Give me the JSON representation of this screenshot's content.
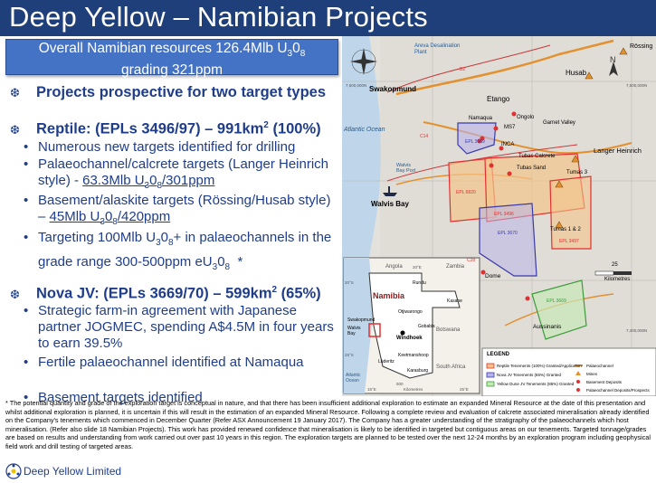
{
  "title": "Deep Yellow – Namibian Projects",
  "resource_box": {
    "line1_pre": "Overall Namibian resources 126.4Mlb U",
    "line1_sub1": "3",
    "line1_mid": "0",
    "line1_sub2": "8",
    "line2": "grading 321ppm"
  },
  "heading1": "Projects prospective for two target types",
  "reptile": {
    "heading_pre": "Reptile: (EPLs 3496/97) – 991km",
    "heading_sup": "2",
    "heading_post": " (100%)",
    "b1": "Numerous new targets identified for drilling",
    "b2_pre": "Palaeochannel/calcrete targets (Langer Heinrich style) - ",
    "b2_link_a": "63.3Mlb U",
    "b2_link_sub1": "3",
    "b2_link_b": "0",
    "b2_link_sub2": "8",
    "b2_link_c": "/301ppm",
    "b3_pre": "Basement/alaskite targets (Rössing/Husab style) – ",
    "b3_link_a": "45Mlb U",
    "b3_link_sub1": "3",
    "b3_link_b": "0",
    "b3_link_sub2": "8",
    "b3_link_c": "/420ppm",
    "b4_a": "Targeting 100Mlb U",
    "b4_sub1": "3",
    "b4_b": "0",
    "b4_sub2": "8",
    "b4_c": "+ in palaeochannels in the grade range 300-500ppm eU",
    "b4_sub3": "3",
    "b4_d": "0",
    "b4_sub4": "8",
    "b4_star": "*"
  },
  "nova": {
    "heading_pre": "Nova JV: (EPLs 3669/70) – 599km",
    "heading_sup": "2",
    "heading_post": " (65%)",
    "b1": "Strategic farm-in agreement with Japanese partner JOGMEC, spending A$4.5M in four years to earn 39.5%",
    "b2": "Fertile palaeochannel identified at Namaqua",
    "b3": "Basement targets identified"
  },
  "footnote": "* The potential quantity and grade of the exploration target is conceptual in nature, and that there has been insufficient additional exploration to estimate an expanded Mineral Resource at the date of this presentation and whilst additional exploration is planned, it is uncertain if this will result in the estimation of an expanded Mineral Resource. Following a complete review and evaluation of calcrete associated mineralisation already identified on the Company's tenements which commenced in December Quarter (Refer ASX Announcement 19 January 2017). The Company has a greater understanding of the stratigraphy of the palaeochannels which host mineralisation. (Refer also slide 18 Namibian Projects). This work has provided renewed confidence that mineralisation is likely to be identified in targeted but contiguous areas on our tenements. Targeted tonnage/grades are based on results and understanding from work carried out over past 10 years in this region. The exploration targets are planned to be tested over the next 12-24 months by an exploration program including geophysical field work and drill testing of targeted areas.",
  "logo_text": "Deep Yellow Limited",
  "map": {
    "areva": "Areva Desalination Plant",
    "rossing": "Rössing",
    "husab": "Husab",
    "swakopmund": "Swakopmund",
    "etango": "Etango",
    "namaqua": "Namaqua",
    "ongolo": "Ongolo",
    "garnet": "Garnet Valley",
    "ms7": "MS7",
    "inca": "INCA",
    "tubas_calcrete": "Tubas Calcrete",
    "tubas_sand": "Tubas Sand",
    "langer": "Langer Heinrich",
    "tumas3": "Tumas 3",
    "tumas12": "Tumas 1 & 2",
    "atlantic": "Atlantic Ocean",
    "walvis_port": "Walvis Bay Port",
    "walvis_bay": "Walvis Bay",
    "epl3669": "EPL 3669",
    "epl6820": "EPL 6820",
    "epl3496": "EPL 3496",
    "epl3497": "EPL 3497",
    "epl3670": "EPL 3670",
    "epl3669b": "EPL 3669",
    "dome": "Dome",
    "aussinanis": "Aussinanis",
    "c14": "C14",
    "c28": "C28",
    "b2": "B2",
    "km_label": "25",
    "kilometres": "Kilometres",
    "north": "N",
    "grid_top1": "7,500,000N",
    "grid_top2": "7,500,000N",
    "grid_bot": "7,400,000N",
    "inset": {
      "angola": "Angola",
      "zambia": "Zambia",
      "namibia": "Namibia",
      "rundu": "Rundu",
      "kasane": "Kasane",
      "ohjiwarongo": "Otjiwarongo",
      "gobabis": "Gobabis",
      "botswana": "Botswana",
      "windhoek": "Windhoek",
      "swakopmund": "Swakopmund",
      "walvis": "Walvis Bay",
      "keetmanshoop": "Keetmanshoop",
      "luderitz": "Lüderitz",
      "karasburg": "Karasburg",
      "south_africa": "South Africa",
      "atlantic": "Atlantic Ocean",
      "lat20": "20°S",
      "lat25": "25°S",
      "lon15": "15°E",
      "lon20": "20°E",
      "lon25": "25°E",
      "km": "500",
      "kmlbl": "Kilometres"
    },
    "legend": {
      "title": "LEGEND",
      "i1": "Reptile Tenements (100%) Granted/Application",
      "i2": "Nova JV Tenements (65%) Granted",
      "i3": "Yellow Dune JV Tenements (85%) Granted",
      "i4": "Palaeochannel",
      "i5": "Mines",
      "i6": "Basement Deposits",
      "i7": "Palaeochannel Deposits/Prospects"
    }
  },
  "colors": {
    "title_bar": "#1f3f7a",
    "resource_box": "#4472c4",
    "text": "#1f3d8a",
    "reptile": "#e23030",
    "nova": "#3a3aa8",
    "yellow_dune": "#3c9a3c"
  }
}
